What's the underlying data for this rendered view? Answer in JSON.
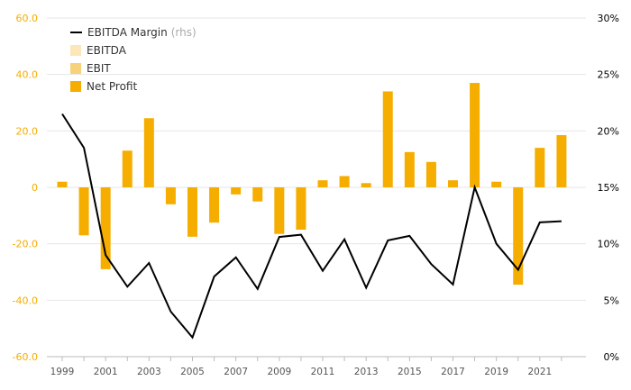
{
  "chart_data": {
    "type": "bar",
    "categories": [
      "1999",
      "2000",
      "2001",
      "2002",
      "2003",
      "2004",
      "2005",
      "2006",
      "2007",
      "2008",
      "2009",
      "2010",
      "2011",
      "2012",
      "2013",
      "2014",
      "2015",
      "2016",
      "2017",
      "2018",
      "2019",
      "2020",
      "2021",
      "2022"
    ],
    "x_tick_labels": [
      "1999",
      "2001",
      "2003",
      "2005",
      "2007",
      "2009",
      "2011",
      "2013",
      "2015",
      "2017",
      "2019",
      "2021"
    ],
    "series": [
      {
        "name": "Net Profit",
        "axis": "left",
        "type": "bar",
        "color": "#f5ad00",
        "values": [
          2.0,
          -17.0,
          -29.0,
          13.0,
          24.5,
          -6.0,
          -17.5,
          -12.5,
          -2.5,
          -5.0,
          -16.5,
          -15.0,
          2.5,
          4.0,
          1.5,
          34.0,
          12.5,
          9.0,
          2.5,
          37.0,
          2.0,
          -34.5,
          14.0,
          18.5
        ]
      },
      {
        "name": "EBITDA Margin",
        "name_suffix": "(rhs)",
        "axis": "right",
        "type": "line",
        "color": "#000000",
        "values": [
          21.5,
          18.5,
          9.0,
          6.2,
          8.3,
          4.0,
          1.7,
          7.1,
          8.8,
          6.0,
          10.6,
          10.8,
          7.6,
          10.4,
          6.1,
          10.3,
          10.7,
          8.2,
          6.4,
          15.0,
          10.0,
          7.7,
          11.9,
          12.0
        ]
      }
    ],
    "legend": [
      {
        "label": "EBITDA Margin",
        "suffix": "(rhs)",
        "kind": "line",
        "color": "#000000"
      },
      {
        "label": "EBITDA",
        "kind": "swatch",
        "color": "#fde7b8"
      },
      {
        "label": "EBIT",
        "kind": "swatch",
        "color": "#f8d27a"
      },
      {
        "label": "Net Profit",
        "kind": "swatch",
        "color": "#f5ad00"
      }
    ],
    "legend_position": "top-left",
    "y_left": {
      "min": -60,
      "max": 60,
      "ticks": [
        "60.0",
        "40.0",
        "20.0",
        "0",
        "-20.0",
        "-40.0",
        "-60.0"
      ],
      "color": "#f5ad00"
    },
    "y_right": {
      "min": 0,
      "max": 30,
      "ticks": [
        "30%",
        "25%",
        "20%",
        "15%",
        "10%",
        "5%",
        "0%"
      ],
      "color": "#000000"
    },
    "grid": true
  }
}
